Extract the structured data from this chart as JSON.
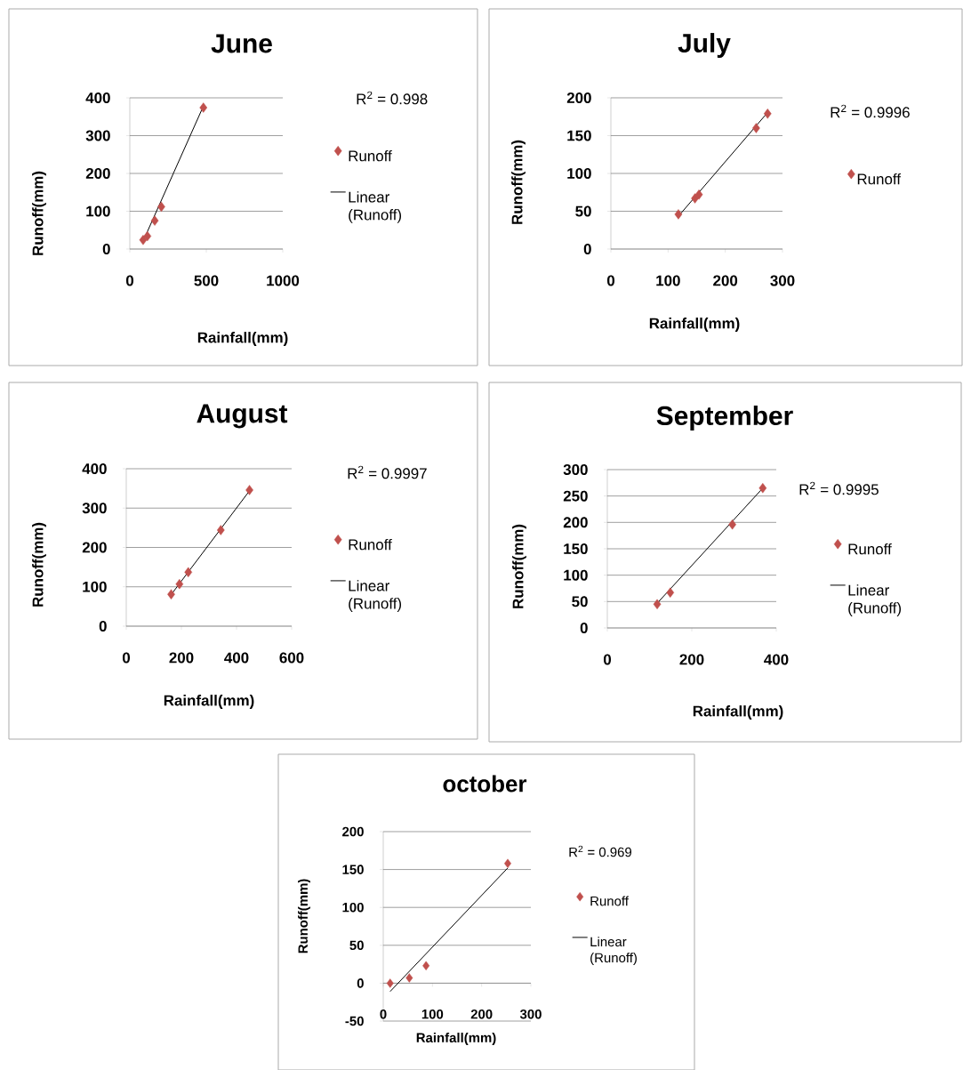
{
  "chart_data": [
    {
      "type": "scatter",
      "title": "June",
      "xlabel": "Rainfall(mm)",
      "ylabel": "Runoff(mm)",
      "xlim": [
        0,
        1000
      ],
      "xticks": [
        0,
        500,
        1000
      ],
      "ylim": [
        0,
        400
      ],
      "yticks": [
        0,
        100,
        200,
        300,
        400
      ],
      "grid": "y",
      "legend": "right",
      "annotations": [
        "R$^{2}$ = 0.998"
      ],
      "series": [
        {
          "name": "Runoff",
          "marker": "diamond",
          "color": "#c0504d",
          "x": [
            87,
            115,
            163,
            206,
            481
          ],
          "values": [
            24,
            34,
            75,
            112,
            374
          ]
        },
        {
          "name": "Linear (Runoff)",
          "type": "line",
          "marker": "none",
          "color": "#000000",
          "x": [
            96,
            471
          ],
          "values": [
            29,
            369
          ]
        }
      ]
    },
    {
      "type": "scatter",
      "title": "July",
      "xlabel": "Rainfall(mm)",
      "ylabel": "Runoff(mm)",
      "xlim": [
        0,
        300
      ],
      "xticks": [
        0,
        100,
        200,
        300
      ],
      "ylim": [
        0,
        200
      ],
      "yticks": [
        0,
        50,
        100,
        150,
        200
      ],
      "grid": "y",
      "legend": "right",
      "annotations": [
        "R$^{2}$ = 0.9996"
      ],
      "series": [
        {
          "name": "Runoff",
          "marker": "diamond",
          "color": "#c0504d",
          "x": [
            118,
            147,
            154,
            254,
            274
          ],
          "values": [
            46,
            67,
            72,
            160,
            179
          ]
        },
        {
          "type": "line",
          "marker": "none",
          "color": "#000000",
          "x": [
            121,
            271
          ],
          "values": [
            46,
            178
          ]
        }
      ]
    },
    {
      "type": "scatter",
      "title": "August",
      "xlabel": "Rainfall(mm)",
      "ylabel": "Runoff(mm)",
      "xlim": [
        0,
        600
      ],
      "xticks": [
        0,
        200,
        400,
        600
      ],
      "ylim": [
        0,
        400
      ],
      "yticks": [
        0,
        100,
        200,
        300,
        400
      ],
      "grid": "y",
      "legend": "right",
      "annotations": [
        "R$^{2}$ = 0.9997"
      ],
      "series": [
        {
          "name": "Runoff",
          "marker": "diamond",
          "color": "#c0504d",
          "x": [
            163,
            193,
            225,
            343,
            447
          ],
          "values": [
            81,
            107,
            137,
            244,
            346
          ]
        },
        {
          "name": "Linear (Runoff)",
          "type": "line",
          "marker": "none",
          "color": "#000000",
          "x": [
            166,
            445
          ],
          "values": [
            83,
            342
          ]
        }
      ]
    },
    {
      "type": "scatter",
      "title": "September",
      "xlabel": "Rainfall(mm)",
      "ylabel": "Runoff(mm)",
      "xlim": [
        0,
        400
      ],
      "xticks": [
        0,
        200,
        400
      ],
      "ylim": [
        0,
        300
      ],
      "yticks": [
        0,
        50,
        100,
        150,
        200,
        250,
        300
      ],
      "grid": "y",
      "legend": "right",
      "annotations": [
        "R$^{2}$ = 0.9995"
      ],
      "series": [
        {
          "name": "Runoff",
          "marker": "diamond",
          "color": "#c0504d",
          "x": [
            118,
            149,
            296,
            368
          ],
          "values": [
            45,
            67,
            196,
            265
          ]
        },
        {
          "name": "Linear (Runoff)",
          "type": "line",
          "marker": "none",
          "color": "#000000",
          "x": [
            116,
            367
          ],
          "values": [
            45,
            264
          ]
        }
      ]
    },
    {
      "type": "scatter",
      "title": "october",
      "xlabel": "Rainfall(mm)",
      "ylabel": "Runoff(mm)",
      "xlim": [
        0,
        300
      ],
      "xticks": [
        0,
        100,
        200,
        300
      ],
      "ylim": [
        -50,
        200
      ],
      "yticks": [
        -50,
        0,
        50,
        100,
        150,
        200
      ],
      "grid": "y",
      "legend": "right",
      "annotations": [
        "R$^{2}$ = 0.969"
      ],
      "series": [
        {
          "name": "Runoff",
          "marker": "diamond",
          "color": "#c0504d",
          "x": [
            14,
            53,
            87,
            253
          ],
          "values": [
            0,
            7,
            23,
            158
          ]
        },
        {
          "name": "Linear (Runoff)",
          "type": "line",
          "marker": "none",
          "color": "#000000",
          "x": [
            14,
            253
          ],
          "values": [
            -11,
            152
          ]
        }
      ]
    }
  ]
}
